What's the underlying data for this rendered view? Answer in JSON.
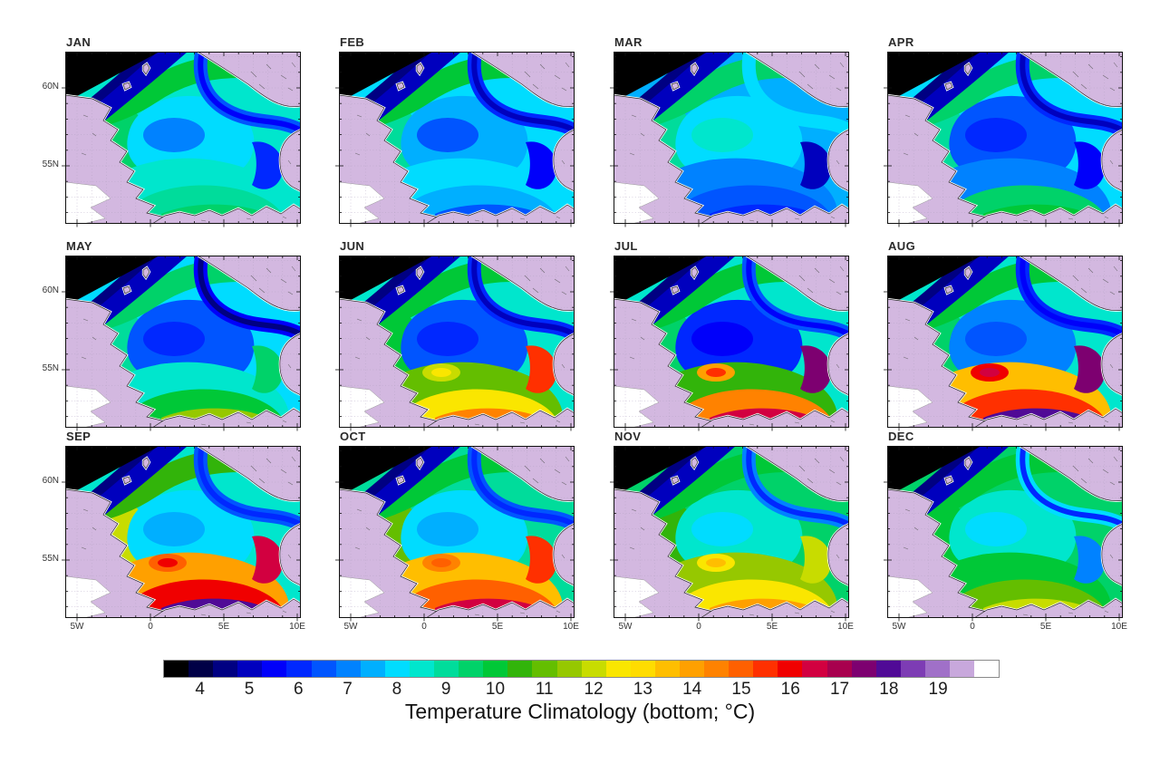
{
  "figure": {
    "title": "Temperature Climatology (bottom; °C)",
    "region": "North Sea",
    "x_tick_labels": [
      "5W",
      "0",
      "5E",
      "10E"
    ],
    "y_tick_labels": [
      "60N",
      "55N"
    ],
    "land_color": "#d3b8e0",
    "coastline_color": "#2a2a2a"
  },
  "chart_data": {
    "type": "heatmap",
    "subtype": "filled-contour map, small multiples (12 monthly panels)",
    "title": "Temperature Climatology (bottom; °C)",
    "variable": "sea-bottom temperature climatology",
    "units": "°C",
    "contour_interval_c": 0.5,
    "axes": {
      "x_ticks": [
        "5W",
        "0",
        "5E",
        "10E"
      ],
      "y_ticks": [
        "60N",
        "55N"
      ],
      "lon_range_deg": [
        -5.8,
        10.3
      ],
      "lat_range_deg": [
        51.3,
        62.3
      ],
      "grid": "faint dotted 1-degree graticule over land"
    },
    "colorbar": {
      "tick_labels": [
        "4",
        "5",
        "6",
        "7",
        "8",
        "9",
        "10",
        "11",
        "12",
        "13",
        "14",
        "15",
        "16",
        "17",
        "18",
        "19"
      ],
      "min_label": 4,
      "max_label": 19,
      "segments_per_degree": 2,
      "colors": [
        "#000000",
        "#000046",
        "#000082",
        "#0000be",
        "#0000fa",
        "#0028ff",
        "#0055ff",
        "#0082ff",
        "#00afff",
        "#00dcff",
        "#00e6cd",
        "#00dc9b",
        "#00d269",
        "#00c837",
        "#32b40a",
        "#64be00",
        "#96c800",
        "#c8dc00",
        "#fae600",
        "#ffdc00",
        "#ffbe00",
        "#ffa000",
        "#ff8200",
        "#ff6000",
        "#ff3000",
        "#f00000",
        "#d20040",
        "#a8004e",
        "#7d0070",
        "#500a96",
        "#7d3cb4",
        "#a070c8",
        "#c8a8dc",
        "#ffffff"
      ]
    },
    "panels": [
      {
        "month": "JAN",
        "approx_bottom_temp_c": {
          "north_shelf": 9.5,
          "central": 8.2,
          "cold_pool": 7.2,
          "norwegian_trench": 5.7,
          "southern_bight_coastal": 6.5
        },
        "colors": {
          "base": "#00e6cd",
          "west": "#00d269",
          "pool": "#00dcff",
          "pool_core": "#0082ff",
          "shelf": "#00c837",
          "atl": "#0000be",
          "trench": "#0055ff",
          "trench_core": "#0000fa",
          "south": "#00e6cd",
          "coastal": "#00dc9b",
          "extreme": "#00d269",
          "sebight": "#0028ff",
          "hot_ring": "#00e6cd",
          "hot_core": "#00e6cd"
        }
      },
      {
        "month": "FEB",
        "approx_bottom_temp_c": {
          "north_shelf": 9.0,
          "central": 7.8,
          "cold_pool": 6.8,
          "norwegian_trench": 5.5,
          "southern_bight_coastal": 5.6
        },
        "colors": {
          "base": "#00dcff",
          "west": "#00dc9b",
          "pool": "#00afff",
          "pool_core": "#0055ff",
          "shelf": "#00c837",
          "atl": "#0000be",
          "trench": "#0028ff",
          "trench_core": "#0000be",
          "south": "#00dcff",
          "coastal": "#00afff",
          "extreme": "#0055ff",
          "sebight": "#0000fa",
          "hot_ring": "#00dcff",
          "hot_core": "#00dcff"
        }
      },
      {
        "month": "MAR",
        "approx_bottom_temp_c": {
          "north_shelf": 9.0,
          "central": 7.5,
          "cold_pool": 6.2,
          "norwegian_trench": 5.3,
          "southern_bight_coastal": 4.8
        },
        "colors": {
          "base": "#00afff",
          "west": "#00dc9b",
          "pool": "#00dcff",
          "pool_core": "#00e6cd",
          "shelf": "#00d269",
          "atl": "#0000be",
          "trench": "#00dcff",
          "trench_core": "#00dcff",
          "south": "#0082ff",
          "coastal": "#0055ff",
          "extreme": "#0028ff",
          "sebight": "#0000be",
          "hot_ring": "#0082ff",
          "hot_core": "#0082ff"
        }
      },
      {
        "month": "APR",
        "approx_bottom_temp_c": {
          "north_shelf": 9.0,
          "central": 7.8,
          "cold_pool": 6.3,
          "norwegian_trench": 5.4,
          "southern_bight_coastal": 5.8
        },
        "colors": {
          "base": "#00dcff",
          "west": "#00dc9b",
          "pool": "#0055ff",
          "pool_core": "#0028ff",
          "shelf": "#00d269",
          "atl": "#0000be",
          "trench": "#0028ff",
          "trench_core": "#0000be",
          "south": "#0082ff",
          "coastal": "#00d269",
          "extreme": "#00c837",
          "sebight": "#0000fa",
          "hot_ring": "#0082ff",
          "hot_core": "#0082ff"
        }
      },
      {
        "month": "MAY",
        "approx_bottom_temp_c": {
          "north_shelf": 9.3,
          "central": 7.8,
          "cold_pool": 6.4,
          "norwegian_trench": 5.4,
          "southern_bight_coastal": 10.0
        },
        "colors": {
          "base": "#00dcff",
          "west": "#00dc9b",
          "pool": "#0055ff",
          "pool_core": "#0028ff",
          "shelf": "#00d269",
          "atl": "#0000be",
          "trench": "#0000fa",
          "trench_core": "#000082",
          "south": "#00e6cd",
          "coastal": "#00c837",
          "extreme": "#96c800",
          "sebight": "#00d269",
          "hot_ring": "#00e6cd",
          "hot_core": "#00e6cd"
        }
      },
      {
        "month": "JUN",
        "approx_bottom_temp_c": {
          "north_shelf": 9.7,
          "central": 8.5,
          "cold_pool": 6.5,
          "norwegian_trench": 5.5,
          "southern_bight_coastal": 14.5
        },
        "colors": {
          "base": "#00e6cd",
          "west": "#00c837",
          "pool": "#0055ff",
          "pool_core": "#0028ff",
          "shelf": "#00c837",
          "atl": "#0000be",
          "trench": "#0028ff",
          "trench_core": "#0000be",
          "south": "#64be00",
          "coastal": "#fae600",
          "extreme": "#ff8200",
          "sebight": "#ff3000",
          "hot_ring": "#c8dc00",
          "hot_core": "#fae600"
        }
      },
      {
        "month": "JUL",
        "approx_bottom_temp_c": {
          "north_shelf": 9.8,
          "central": 8.6,
          "cold_pool": 6.3,
          "norwegian_trench": 5.7,
          "southern_bight_coastal": 16.2
        },
        "colors": {
          "base": "#00e6cd",
          "west": "#00d269",
          "pool": "#0028ff",
          "pool_core": "#0000fa",
          "shelf": "#00c837",
          "atl": "#0000be",
          "trench": "#0055ff",
          "trench_core": "#0000fa",
          "south": "#32b40a",
          "coastal": "#ff8200",
          "extreme": "#d20040",
          "sebight": "#7d0070",
          "hot_ring": "#ffa000",
          "hot_core": "#ff3000"
        }
      },
      {
        "month": "AUG",
        "approx_bottom_temp_c": {
          "north_shelf": 10.0,
          "central": 8.8,
          "cold_pool": 7.0,
          "norwegian_trench": 6.0,
          "southern_bight_coastal": 17.6
        },
        "colors": {
          "base": "#00e6cd",
          "west": "#00d269",
          "pool": "#0082ff",
          "pool_core": "#0055ff",
          "shelf": "#00c837",
          "atl": "#0000be",
          "trench": "#0028ff",
          "trench_core": "#0000fa",
          "south": "#ffbe00",
          "coastal": "#ff3000",
          "extreme": "#500a96",
          "sebight": "#7d0070",
          "hot_ring": "#f00000",
          "hot_core": "#d20040"
        }
      },
      {
        "month": "SEP",
        "approx_bottom_temp_c": {
          "north_shelf": 11.5,
          "central": 8.7,
          "cold_pool": 7.8,
          "norwegian_trench": 6.5,
          "southern_bight_coastal": 17.8
        },
        "colors": {
          "base": "#00e6cd",
          "west": "#c8dc00",
          "pool": "#00dcff",
          "pool_core": "#00afff",
          "shelf": "#32b40a",
          "atl": "#0000be",
          "trench": "#0055ff",
          "trench_core": "#0028ff",
          "south": "#ffa000",
          "coastal": "#f00000",
          "extreme": "#500a96",
          "sebight": "#d20040",
          "hot_ring": "#ff6000",
          "hot_core": "#f00000"
        }
      },
      {
        "month": "OCT",
        "approx_bottom_temp_c": {
          "north_shelf": 10.6,
          "central": 9.0,
          "cold_pool": 8.2,
          "norwegian_trench": 6.8,
          "southern_bight_coastal": 15.8
        },
        "colors": {
          "base": "#00dc9b",
          "west": "#64be00",
          "pool": "#00dcff",
          "pool_core": "#00afff",
          "shelf": "#00c837",
          "atl": "#0000be",
          "trench": "#0055ff",
          "trench_core": "#0028ff",
          "south": "#ffbe00",
          "coastal": "#ff6000",
          "extreme": "#d20040",
          "sebight": "#ff3000",
          "hot_ring": "#ff8200",
          "hot_core": "#ff6000"
        }
      },
      {
        "month": "NOV",
        "approx_bottom_temp_c": {
          "north_shelf": 10.0,
          "central": 9.3,
          "cold_pool": 8.8,
          "norwegian_trench": 7.0,
          "southern_bight_coastal": 12.8
        },
        "colors": {
          "base": "#00d269",
          "west": "#32b40a",
          "pool": "#00e6cd",
          "pool_core": "#00dcff",
          "shelf": "#00c837",
          "atl": "#0000be",
          "trench": "#0082ff",
          "trench_core": "#0028ff",
          "south": "#96c800",
          "coastal": "#fae600",
          "extreme": "#ffa000",
          "sebight": "#c8dc00",
          "hot_ring": "#fae600",
          "hot_core": "#ffbe00"
        }
      },
      {
        "month": "DEC",
        "approx_bottom_temp_c": {
          "north_shelf": 9.7,
          "central": 9.0,
          "cold_pool": 8.6,
          "norwegian_trench": 6.6,
          "southern_bight_coastal": 10.6
        },
        "colors": {
          "base": "#00d269",
          "west": "#00c837",
          "pool": "#00e6cd",
          "pool_core": "#00dcff",
          "shelf": "#00c837",
          "atl": "#0000be",
          "trench": "#00dcff",
          "trench_core": "#0028ff",
          "south": "#00c837",
          "coastal": "#64be00",
          "extreme": "#c8dc00",
          "sebight": "#0082ff",
          "hot_ring": "#00c837",
          "hot_core": "#00c837"
        }
      }
    ]
  }
}
